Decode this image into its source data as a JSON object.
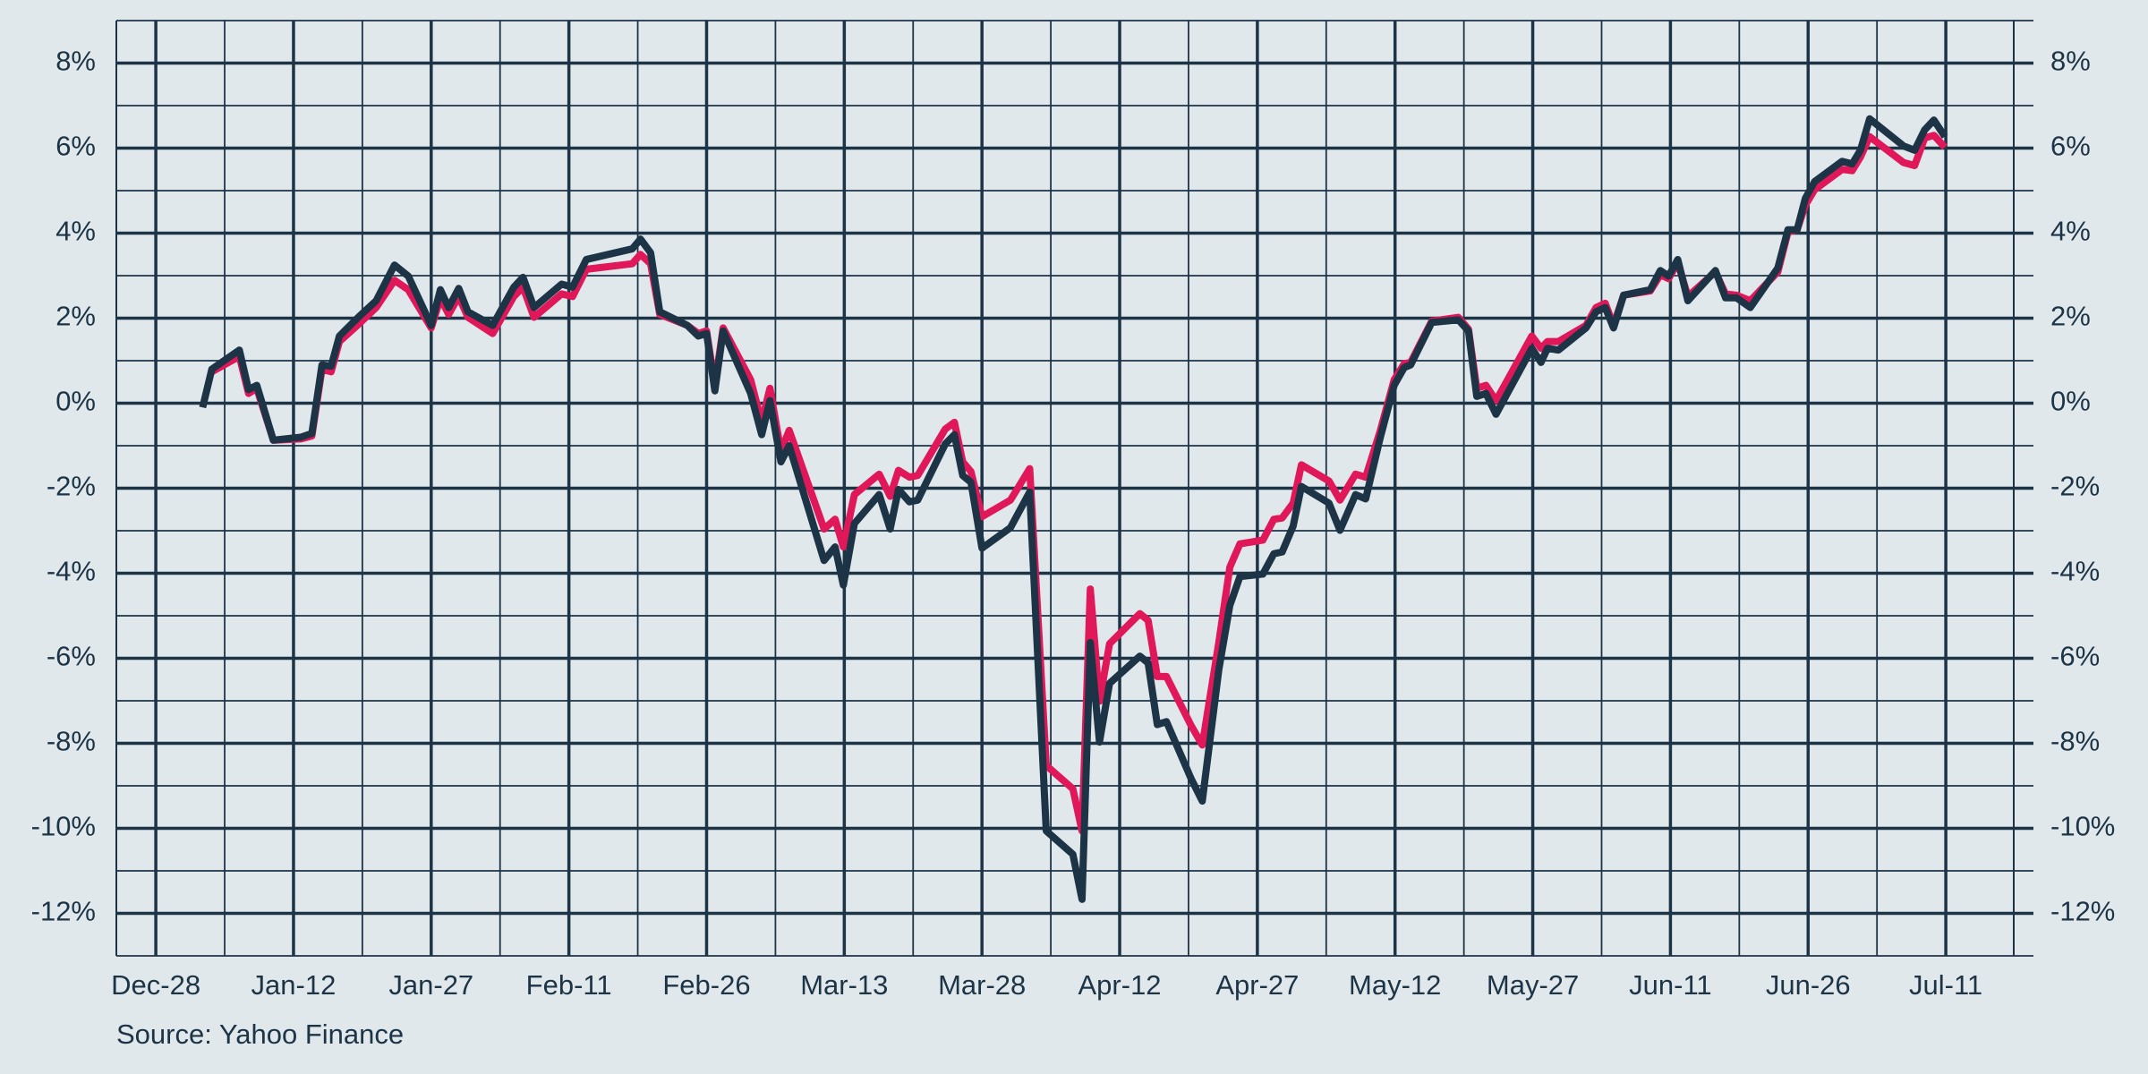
{
  "chart_data": {
    "type": "line",
    "source": "Source: Yahoo Finance",
    "grid": true,
    "xlim": [
      -4.3,
      202.4
    ],
    "xticks": [
      {
        "value": 0,
        "label": "Dec-28"
      },
      {
        "value": 15,
        "label": "Jan-12"
      },
      {
        "value": 30,
        "label": "Jan-27"
      },
      {
        "value": 45,
        "label": "Feb-11"
      },
      {
        "value": 60,
        "label": "Feb-26"
      },
      {
        "value": 75,
        "label": "Mar-13"
      },
      {
        "value": 90,
        "label": "Mar-28"
      },
      {
        "value": 105,
        "label": "Apr-12"
      },
      {
        "value": 120,
        "label": "Apr-27"
      },
      {
        "value": 135,
        "label": "May-12"
      },
      {
        "value": 150,
        "label": "May-27"
      },
      {
        "value": 165,
        "label": "Jun-11"
      },
      {
        "value": 180,
        "label": "Jun-26"
      },
      {
        "value": 195,
        "label": "Jul-11"
      }
    ],
    "xminorticks": [
      7.5,
      22.5,
      37.5,
      52.5,
      67.5,
      82.5,
      97.5,
      112.5,
      127.5,
      142.5,
      157.5,
      172.5,
      187.5,
      202.5
    ],
    "ylim": [
      -13,
      9
    ],
    "yticks": [
      {
        "value": -12,
        "label": "-12%"
      },
      {
        "value": -10,
        "label": "-10%"
      },
      {
        "value": -8,
        "label": "-8%"
      },
      {
        "value": -6,
        "label": "-6%"
      },
      {
        "value": -4,
        "label": "-4%"
      },
      {
        "value": -2,
        "label": "-2%"
      },
      {
        "value": 0,
        "label": "0%"
      },
      {
        "value": 2,
        "label": "2%"
      },
      {
        "value": 4,
        "label": "4%"
      },
      {
        "value": 6,
        "label": "6%"
      },
      {
        "value": 8,
        "label": "8%"
      }
    ],
    "yminorticks": [
      -13,
      -11,
      -9,
      -7,
      -5,
      -3,
      -1,
      1,
      3,
      5,
      7,
      9
    ],
    "y2lim": [
      -13,
      9
    ],
    "y2ticks": [
      {
        "value": -12,
        "label": "-12%"
      },
      {
        "value": -10,
        "label": "-10%"
      },
      {
        "value": -8,
        "label": "-8%"
      },
      {
        "value": -6,
        "label": "-6%"
      },
      {
        "value": -4,
        "label": "-4%"
      },
      {
        "value": -2,
        "label": "-2%"
      },
      {
        "value": 0,
        "label": "0%"
      },
      {
        "value": 2,
        "label": "2%"
      },
      {
        "value": 4,
        "label": "4%"
      },
      {
        "value": 6,
        "label": "6%"
      },
      {
        "value": 8,
        "label": "8%"
      }
    ],
    "x": [
      5.1,
      6.1,
      9.1,
      10.1,
      11.0,
      12.8,
      15.8,
      17.0,
      18.1,
      19.1,
      20.0,
      22.1,
      24.0,
      26.0,
      27.5,
      30.0,
      31.0,
      31.9,
      33.0,
      34.0,
      36.7,
      39.0,
      40.0,
      41.2,
      44.2,
      45.4,
      46.9,
      51.9,
      52.8,
      53.9,
      54.9,
      57.9,
      59.1,
      60.0,
      60.9,
      61.8,
      64.8,
      66.0,
      66.9,
      68.1,
      69.0,
      72.8,
      74.0,
      74.9,
      76.1,
      78.8,
      80.0,
      80.9,
      82.1,
      83.0,
      86.0,
      87.0,
      87.9,
      88.8,
      90.0,
      93.1,
      95.2,
      97.0,
      99.9,
      100.9,
      101.8,
      102.8,
      103.9,
      107.2,
      108.1,
      109.1,
      110.1,
      112.8,
      114.0,
      115.8,
      117.0,
      118.1,
      120.6,
      121.8,
      122.7,
      123.9,
      124.8,
      127.8,
      129.0,
      130.7,
      131.8,
      133.4,
      134.9,
      136.0,
      136.7,
      139.0,
      141.9,
      143.0,
      143.9,
      144.9,
      146.0,
      149.9,
      150.9,
      151.6,
      152.8,
      155.8,
      156.9,
      157.9,
      158.8,
      159.9,
      162.8,
      163.9,
      164.8,
      165.8,
      166.9,
      169.9,
      171.0,
      172.2,
      173.7,
      176.7,
      177.8,
      178.8,
      179.7,
      180.7,
      183.7,
      184.8,
      185.7,
      186.7,
      190.4,
      191.6,
      192.7,
      193.7,
      194.9
    ],
    "series": [
      {
        "color": "#1d3447",
        "values": [
          -0.1,
          0.8,
          1.25,
          0.32,
          0.42,
          -0.87,
          -0.8,
          -0.71,
          0.9,
          0.87,
          1.58,
          2.03,
          2.41,
          3.25,
          2.99,
          1.83,
          2.67,
          2.25,
          2.7,
          2.15,
          1.83,
          2.73,
          2.96,
          2.25,
          2.8,
          2.73,
          3.38,
          3.63,
          3.86,
          3.54,
          2.15,
          1.83,
          1.58,
          1.64,
          0.29,
          1.7,
          0.23,
          -0.74,
          0.06,
          -1.38,
          -1.0,
          -3.7,
          -3.38,
          -4.28,
          -2.83,
          -2.15,
          -2.96,
          -2.03,
          -2.32,
          -2.28,
          -0.96,
          -0.74,
          -1.7,
          -1.86,
          -3.41,
          -2.93,
          -2.09,
          -10.06,
          -10.61,
          -11.67,
          -5.63,
          -7.97,
          -6.59,
          -5.95,
          -6.11,
          -7.56,
          -7.49,
          -8.84,
          -9.36,
          -6.27,
          -4.76,
          -4.08,
          -4.02,
          -3.54,
          -3.5,
          -2.89,
          -1.96,
          -2.35,
          -2.99,
          -2.15,
          -2.25,
          -0.8,
          0.42,
          0.84,
          0.9,
          1.9,
          1.96,
          1.7,
          0.16,
          0.23,
          -0.26,
          1.29,
          0.96,
          1.29,
          1.25,
          1.77,
          2.15,
          2.25,
          1.77,
          2.54,
          2.67,
          3.12,
          2.99,
          3.38,
          2.41,
          3.12,
          2.48,
          2.48,
          2.25,
          3.18,
          4.08,
          4.08,
          4.82,
          5.21,
          5.69,
          5.63,
          5.95,
          6.69,
          6.05,
          5.95,
          6.43,
          6.66,
          6.27
        ]
      },
      {
        "color": "#e0185a",
        "values": [
          null,
          0.74,
          1.1,
          0.23,
          0.35,
          -0.87,
          -0.84,
          -0.77,
          0.8,
          0.74,
          1.45,
          1.86,
          2.25,
          2.89,
          2.67,
          1.77,
          2.47,
          2.09,
          2.51,
          2.02,
          1.64,
          2.51,
          2.73,
          2.02,
          2.57,
          2.51,
          3.15,
          3.28,
          3.5,
          3.28,
          2.09,
          1.83,
          1.64,
          1.7,
          0.42,
          1.77,
          0.55,
          -0.45,
          0.35,
          -1.13,
          -0.64,
          -2.96,
          -2.73,
          -3.38,
          -2.15,
          -1.67,
          -2.19,
          -1.58,
          -1.74,
          -1.7,
          -0.61,
          -0.45,
          -1.38,
          -1.61,
          -2.67,
          -2.28,
          -1.54,
          -8.52,
          -9.07,
          -10.06,
          -4.37,
          -7.01,
          -5.66,
          -4.95,
          -5.11,
          -6.43,
          -6.43,
          -7.59,
          -8.04,
          -5.63,
          -3.86,
          -3.31,
          -3.22,
          -2.73,
          -2.7,
          -2.35,
          -1.45,
          -1.83,
          -2.28,
          -1.67,
          -1.74,
          -0.64,
          0.55,
          0.93,
          0.96,
          1.93,
          2.02,
          1.74,
          0.35,
          0.42,
          0.06,
          1.58,
          1.29,
          1.45,
          1.45,
          1.83,
          2.25,
          2.35,
          1.83,
          2.54,
          2.64,
          3.02,
          2.93,
          3.31,
          2.51,
          3.09,
          2.57,
          2.54,
          2.41,
          3.09,
          4.02,
          4.08,
          4.66,
          5.02,
          5.5,
          5.47,
          5.79,
          6.27,
          5.66,
          5.59,
          6.24,
          6.3,
          6.02
        ]
      }
    ]
  }
}
